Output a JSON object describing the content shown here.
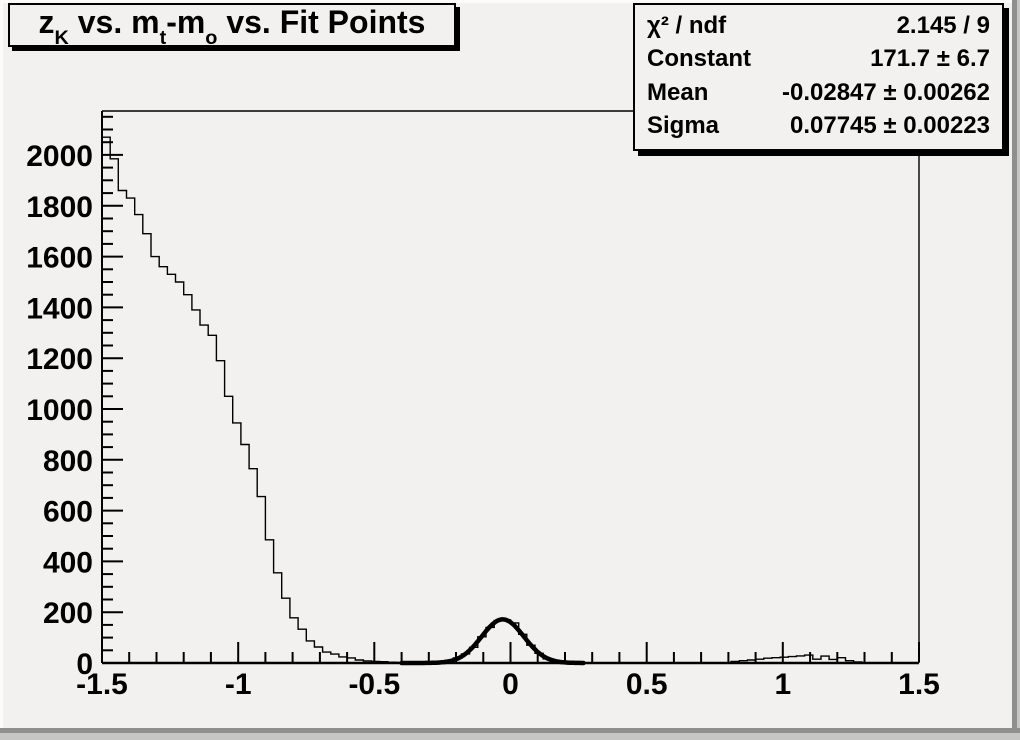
{
  "canvas": {
    "background": "#f2f1ef",
    "bevel_light": "#fbfbfa",
    "bevel_dark": "#8f8f8f",
    "bevel_mid": "#c6c6c4",
    "line_color": "#000000"
  },
  "title_box": {
    "plain": "z_K vs. m_t-m_o vs. Fit Points",
    "segments": [
      {
        "text": "z"
      },
      {
        "text": "K",
        "sub": true
      },
      {
        "text": " vs. m"
      },
      {
        "text": "t",
        "sub": true
      },
      {
        "text": "-m"
      },
      {
        "text": "o",
        "sub": true
      },
      {
        "text": " vs. Fit Points"
      }
    ]
  },
  "stats_box": {
    "rows": [
      {
        "label": "χ² / ndf",
        "value": "2.145 / 9"
      },
      {
        "label": "Constant",
        "value": "171.7 ± 6.7"
      },
      {
        "label": "Mean",
        "value": "-0.02847 ± 0.00262"
      },
      {
        "label": "Sigma",
        "value": "0.07745 ± 0.00223"
      }
    ]
  },
  "chart_data": {
    "type": "bar",
    "subtype": "step-histogram",
    "title": "z_K vs. m_t-m_o vs. Fit Points",
    "xlabel": "",
    "ylabel": "",
    "grid": false,
    "xlim": [
      -1.5,
      1.5
    ],
    "ylim": [
      0,
      2173
    ],
    "x_major_ticks": [
      -1.5,
      -1.0,
      -0.5,
      0,
      0.5,
      1.0,
      1.5
    ],
    "x_tick_labels": [
      "-1.5",
      "-1",
      "-0.5",
      "0",
      "0.5",
      "1",
      "1.5"
    ],
    "x_minor_tick_step": 0.1,
    "y_major_ticks": [
      0,
      200,
      400,
      600,
      800,
      1000,
      1200,
      1400,
      1600,
      1800,
      2000
    ],
    "y_tick_labels": [
      "0",
      "200",
      "400",
      "600",
      "800",
      "1000",
      "1200",
      "1400",
      "1600",
      "1800",
      "2000"
    ],
    "y_minor_tick_step": 50,
    "bin_width": 0.03,
    "hist_line_color": "#000000",
    "hist_line_width": 1.4,
    "bins": [
      [
        -1.485,
        2070
      ],
      [
        -1.455,
        1985
      ],
      [
        -1.425,
        1860
      ],
      [
        -1.395,
        1830
      ],
      [
        -1.365,
        1765
      ],
      [
        -1.335,
        1690
      ],
      [
        -1.305,
        1600
      ],
      [
        -1.275,
        1560
      ],
      [
        -1.245,
        1530
      ],
      [
        -1.215,
        1500
      ],
      [
        -1.185,
        1450
      ],
      [
        -1.155,
        1390
      ],
      [
        -1.125,
        1330
      ],
      [
        -1.095,
        1290
      ],
      [
        -1.065,
        1190
      ],
      [
        -1.035,
        1050
      ],
      [
        -1.005,
        945
      ],
      [
        -0.975,
        860
      ],
      [
        -0.945,
        765
      ],
      [
        -0.915,
        655
      ],
      [
        -0.885,
        485
      ],
      [
        -0.855,
        355
      ],
      [
        -0.825,
        255
      ],
      [
        -0.795,
        178
      ],
      [
        -0.765,
        133
      ],
      [
        -0.735,
        87
      ],
      [
        -0.705,
        63
      ],
      [
        -0.675,
        43
      ],
      [
        -0.645,
        35
      ],
      [
        -0.615,
        24
      ],
      [
        -0.585,
        20
      ],
      [
        -0.555,
        12
      ],
      [
        -0.525,
        8
      ],
      [
        -0.495,
        6
      ],
      [
        -0.465,
        5
      ],
      [
        -0.435,
        3
      ],
      [
        -0.405,
        2
      ],
      [
        -0.375,
        2
      ],
      [
        -0.345,
        2
      ],
      [
        -0.315,
        2
      ],
      [
        -0.285,
        3
      ],
      [
        -0.255,
        6
      ],
      [
        -0.225,
        11
      ],
      [
        -0.195,
        20
      ],
      [
        -0.165,
        36
      ],
      [
        -0.135,
        62
      ],
      [
        -0.105,
        103
      ],
      [
        -0.075,
        140
      ],
      [
        -0.045,
        167
      ],
      [
        -0.015,
        170
      ],
      [
        0.015,
        158
      ],
      [
        0.045,
        113
      ],
      [
        0.075,
        70
      ],
      [
        0.105,
        38
      ],
      [
        0.135,
        16
      ],
      [
        0.165,
        6
      ],
      [
        0.195,
        2
      ],
      [
        0.225,
        1
      ],
      [
        0.825,
        6
      ],
      [
        0.855,
        9
      ],
      [
        0.885,
        12
      ],
      [
        0.915,
        15
      ],
      [
        0.945,
        19
      ],
      [
        0.975,
        21
      ],
      [
        1.005,
        23
      ],
      [
        1.035,
        25
      ],
      [
        1.065,
        28
      ],
      [
        1.095,
        31
      ],
      [
        1.125,
        15
      ],
      [
        1.155,
        27
      ],
      [
        1.185,
        14
      ],
      [
        1.215,
        21
      ],
      [
        1.245,
        9
      ],
      [
        1.275,
        4
      ],
      [
        1.305,
        1
      ]
    ],
    "fit": {
      "type": "gaussian",
      "constant": 171.7,
      "mean": -0.02847,
      "sigma": 0.07745,
      "chi2": 2.145,
      "ndf": 9,
      "draw_range": [
        -0.4,
        0.27
      ],
      "line_color": "#000000",
      "line_width": 4.5
    }
  }
}
